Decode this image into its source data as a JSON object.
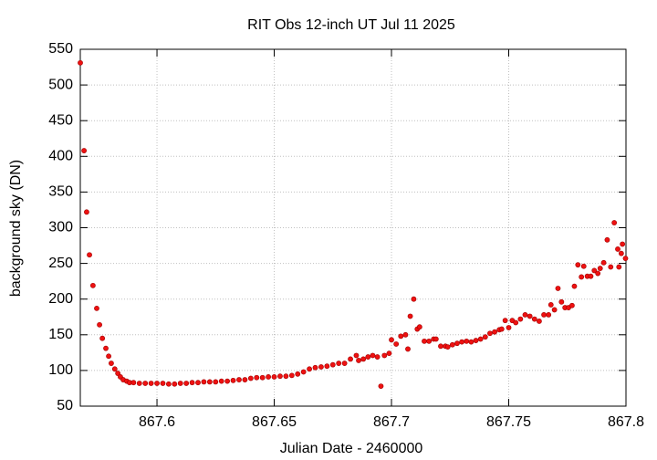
{
  "chart_data": {
    "type": "scatter",
    "title": "RIT Obs 12-inch UT Jul 11 2025",
    "xlabel": "Julian Date - 2460000",
    "ylabel": "background sky (DN)",
    "color": "#ee1111",
    "grid": true,
    "xlim": [
      867.5673,
      867.8
    ],
    "ylim": [
      50,
      550
    ],
    "xticks": [
      867.6,
      867.65,
      867.7,
      867.75,
      867.8
    ],
    "yticks": [
      50,
      100,
      150,
      200,
      250,
      300,
      350,
      400,
      450,
      500,
      550
    ],
    "x": [
      867.5673,
      867.5689,
      867.57,
      867.5712,
      867.5727,
      867.5743,
      867.5755,
      867.5767,
      867.5782,
      867.5794,
      867.5805,
      867.582,
      867.5833,
      867.5844,
      867.5856,
      867.5871,
      867.5883,
      867.59,
      867.5925,
      867.595,
      867.5975,
      867.6,
      867.6025,
      867.605,
      867.6075,
      867.61,
      867.6125,
      867.615,
      867.6175,
      867.62,
      867.6225,
      867.625,
      867.6275,
      867.63,
      867.6325,
      867.635,
      867.6375,
      867.64,
      867.6425,
      867.645,
      867.6475,
      867.65,
      867.6525,
      867.655,
      867.6575,
      867.66,
      867.6625,
      867.665,
      867.6675,
      867.67,
      867.6725,
      867.675,
      867.6775,
      867.68,
      867.6825,
      867.685,
      867.686,
      867.688,
      867.69,
      867.692,
      867.694,
      867.6955,
      867.697,
      867.699,
      867.7,
      867.702,
      867.704,
      867.706,
      867.707,
      867.708,
      867.7095,
      867.711,
      867.712,
      867.714,
      867.716,
      867.718,
      867.719,
      867.721,
      867.723,
      867.724,
      867.726,
      867.728,
      867.73,
      867.732,
      867.734,
      867.736,
      867.738,
      867.74,
      867.742,
      867.744,
      867.746,
      867.747,
      867.7485,
      867.75,
      867.7515,
      867.753,
      867.755,
      867.757,
      867.759,
      867.761,
      867.763,
      867.765,
      867.767,
      867.768,
      867.7695,
      867.771,
      867.7725,
      867.774,
      867.7755,
      867.777,
      867.778,
      867.7795,
      867.781,
      867.782,
      867.7835,
      867.785,
      867.7865,
      867.788,
      867.789,
      867.7905,
      867.792,
      867.7935,
      867.795,
      867.7965,
      867.798,
      867.797,
      867.7985,
      867.7998
    ],
    "values": [
      531,
      408,
      322,
      262,
      219,
      187,
      164,
      145,
      131,
      120,
      110,
      102,
      96,
      91,
      87,
      85,
      83,
      83,
      82,
      82,
      82,
      82,
      82,
      81,
      81,
      82,
      82,
      83,
      83,
      84,
      84,
      84,
      85,
      85,
      86,
      87,
      87,
      89,
      90,
      90,
      91,
      91,
      92,
      92,
      93,
      95,
      98,
      102,
      104,
      105,
      106,
      108,
      110,
      110,
      116,
      121,
      114,
      116,
      119,
      121,
      119,
      78,
      121,
      124,
      143,
      137,
      148,
      150,
      130,
      176,
      200,
      158,
      161,
      141,
      141,
      144,
      144,
      134,
      134,
      133,
      136,
      138,
      140,
      141,
      140,
      142,
      144,
      147,
      152,
      154,
      157,
      158,
      170,
      160,
      170,
      167,
      172,
      178,
      176,
      172,
      169,
      178,
      178,
      192,
      185,
      215,
      196,
      188,
      188,
      191,
      218,
      248,
      231,
      246,
      232,
      232,
      240,
      236,
      243,
      251,
      283,
      245,
      307,
      270,
      264,
      245,
      277,
      257
    ]
  }
}
